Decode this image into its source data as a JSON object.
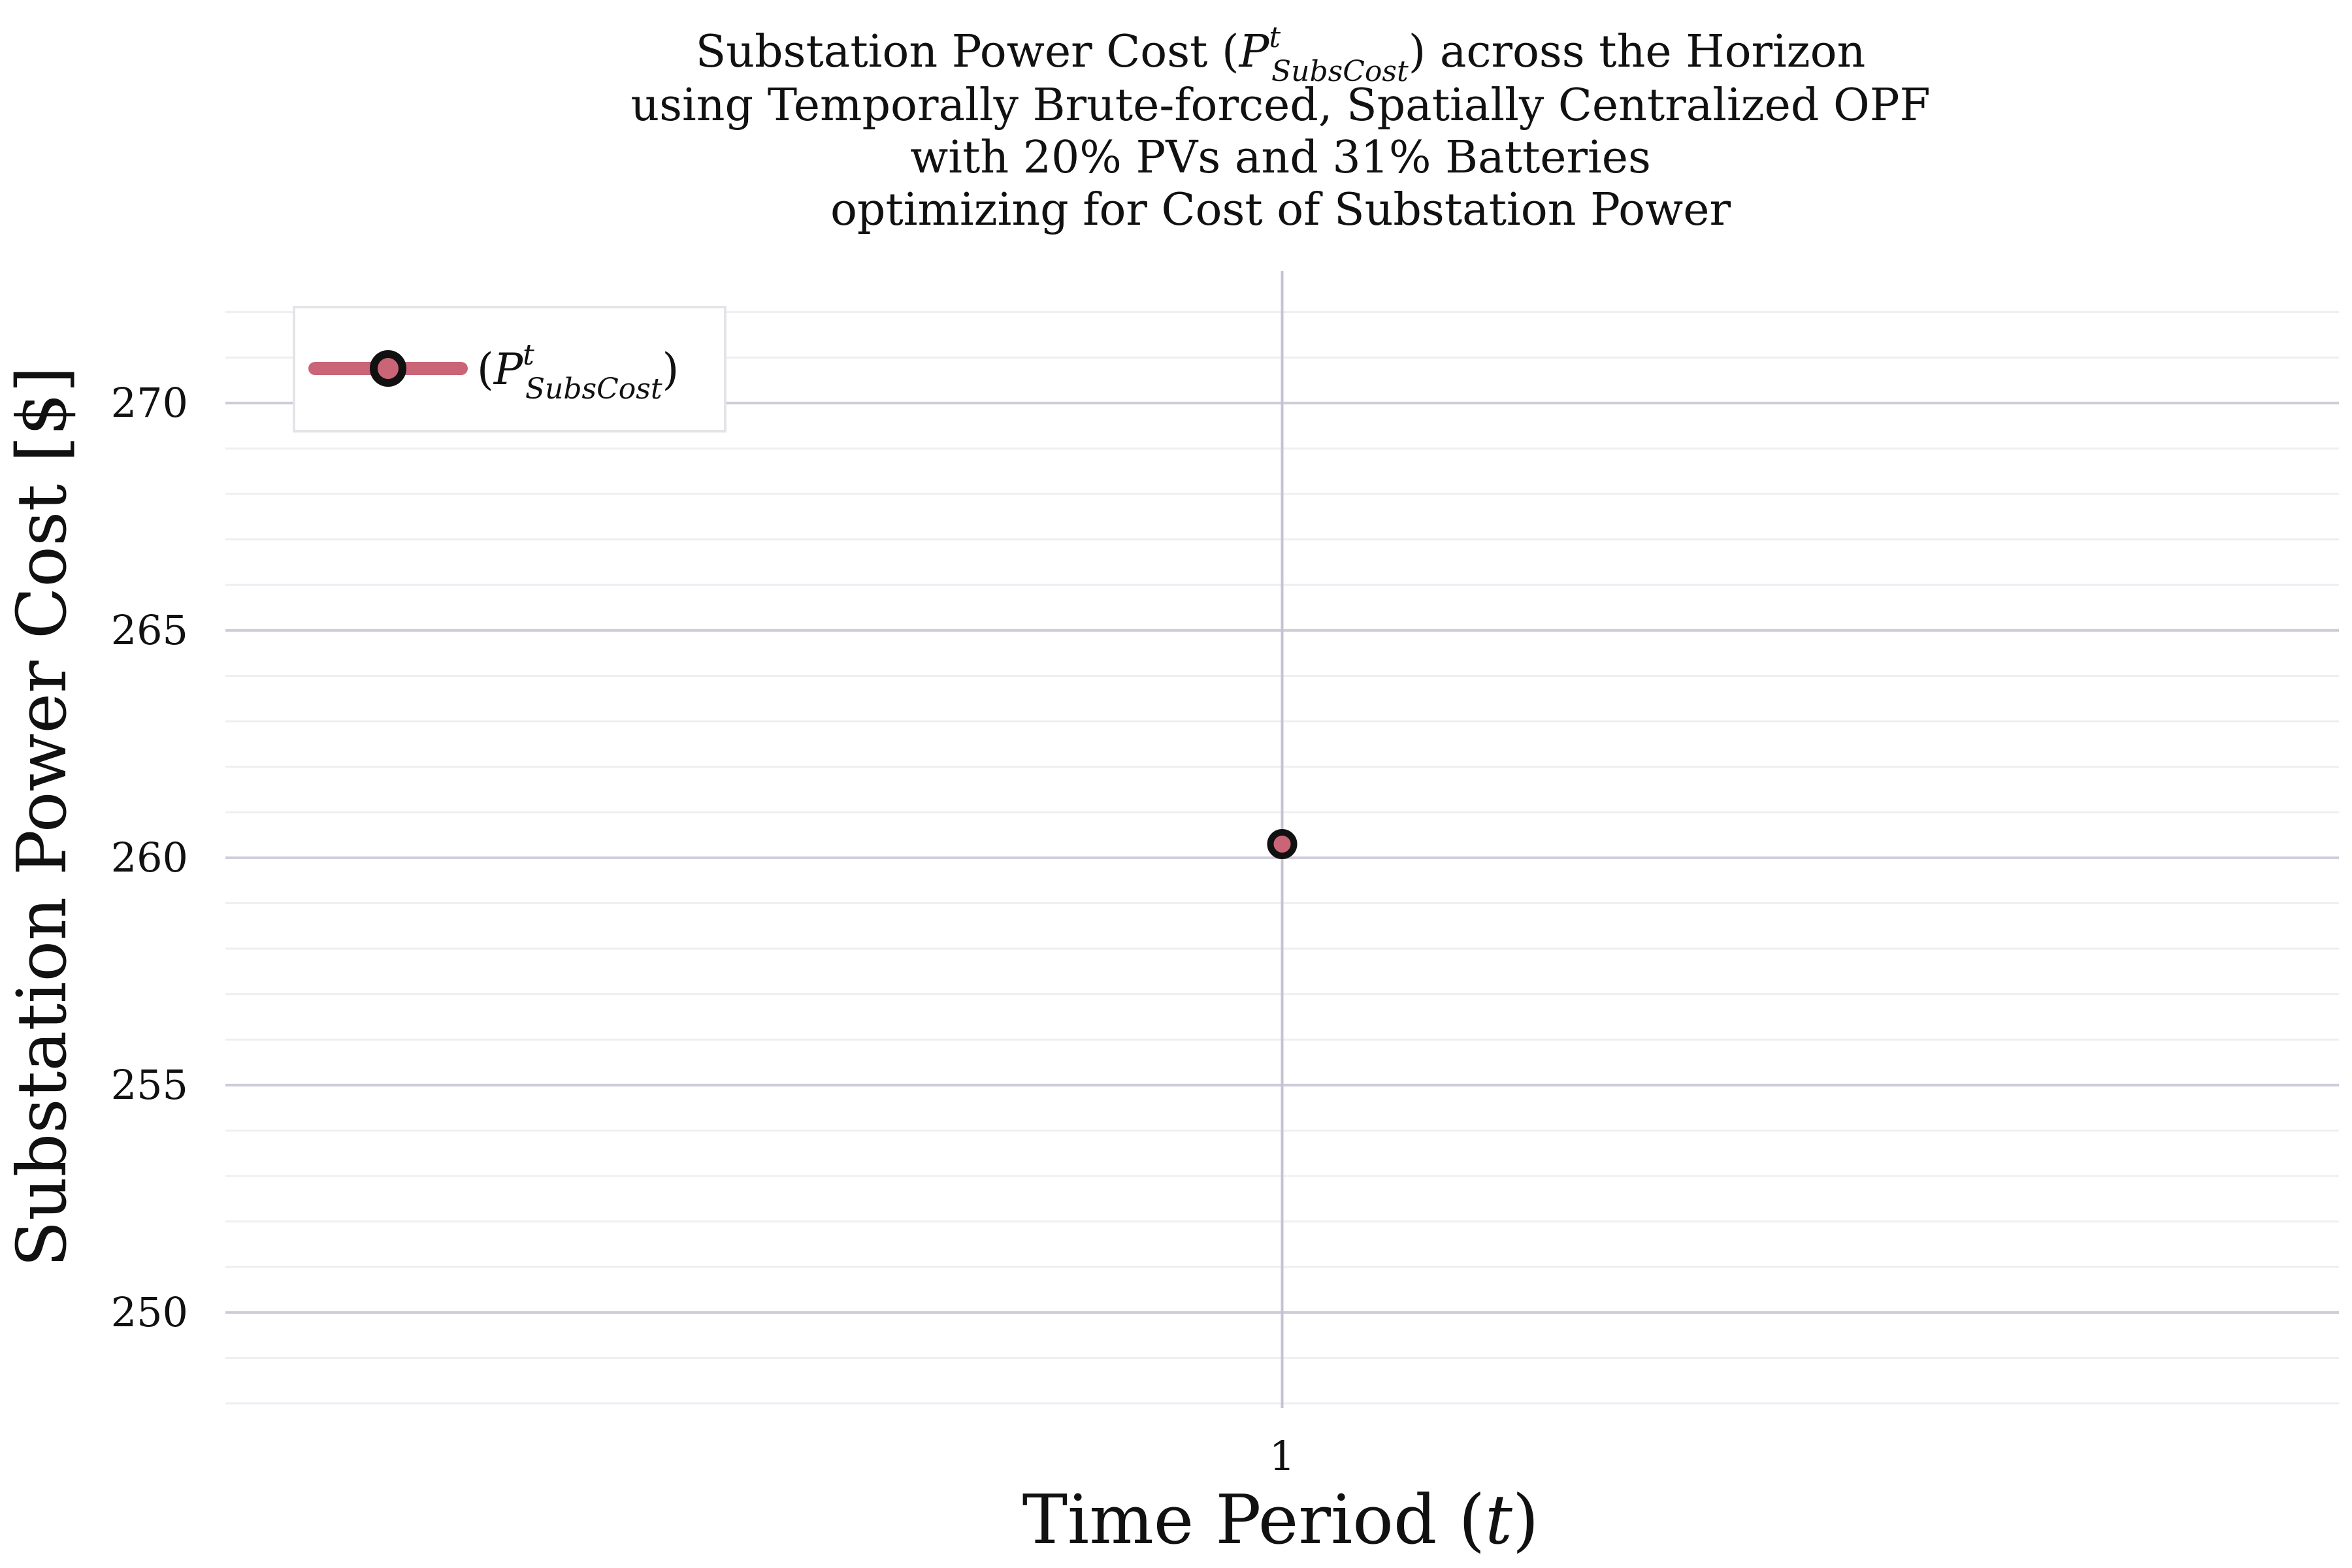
{
  "chart_data": {
    "type": "line",
    "title_lines": [
      {
        "pre": "Substation Power Cost (",
        "sym": "P",
        "sup": "t",
        "sub": "SubsCost",
        "post": ") across the Horizon"
      },
      {
        "text": "using Temporally Brute-forced, Spatially Centralized OPF"
      },
      {
        "text": "with 20% PVs and 31% Batteries"
      },
      {
        "text": "optimizing for Cost of Substation Power"
      }
    ],
    "xlabel": {
      "pre": "Time Period (",
      "var": "t",
      "post": ")"
    },
    "ylabel": "Substation Power Cost [$]",
    "x": [
      1
    ],
    "x_ticks": [
      "1"
    ],
    "xlim": [
      -1.5,
      3.5
    ],
    "ylim": [
      247.9,
      272.9
    ],
    "y_ticks": [
      250,
      255,
      260,
      265,
      270
    ],
    "y_minor_step": 1,
    "grid": true,
    "legend_position": "top-left",
    "series": [
      {
        "label": {
          "pre": "(",
          "sym": "P",
          "sup": "t",
          "sub": "SubsCost",
          "post": ")"
        },
        "values": [
          260.3
        ],
        "line_color": "#c96577",
        "marker_fill": "#c96577",
        "marker_edge": "#111111"
      }
    ],
    "colors": {
      "grid_major": "#cdccd8",
      "grid_minor": "#efeef3",
      "vline": "#c5c3d2"
    }
  }
}
